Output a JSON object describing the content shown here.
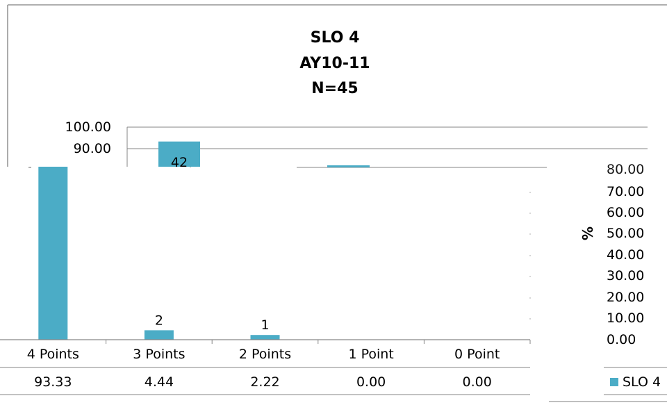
{
  "colors": {
    "series": "#4BACC6",
    "frame": "#7f7f7f",
    "grid": "#868686"
  },
  "chart_data": {
    "type": "bar",
    "title": "SLO 4",
    "subtitle_lines": [
      "AY10-11",
      "N=45"
    ],
    "categories": [
      "4 Points",
      "3 Points",
      "2 Points",
      "1 Point",
      "0 Point"
    ],
    "series": [
      {
        "name": "SLO 4",
        "values": [
          93.33,
          4.44,
          2.22,
          0.0,
          0.0
        ],
        "counts": [
          42,
          2,
          1,
          0,
          0
        ],
        "display_values": [
          "93.33",
          "4.44",
          "2.22",
          "0.00",
          "0.00"
        ]
      }
    ],
    "ylabel": "%",
    "ylim": [
      0,
      100
    ],
    "y_ticks_upper": [
      "100.00",
      "90.00"
    ],
    "y_ticks_lower": [
      "70.00",
      "60.00",
      "50.00",
      "40.00",
      "30.00",
      "20.00",
      "10.00",
      "0.00"
    ],
    "grid": true,
    "legend_position": "bottom-right",
    "data_table": true
  }
}
